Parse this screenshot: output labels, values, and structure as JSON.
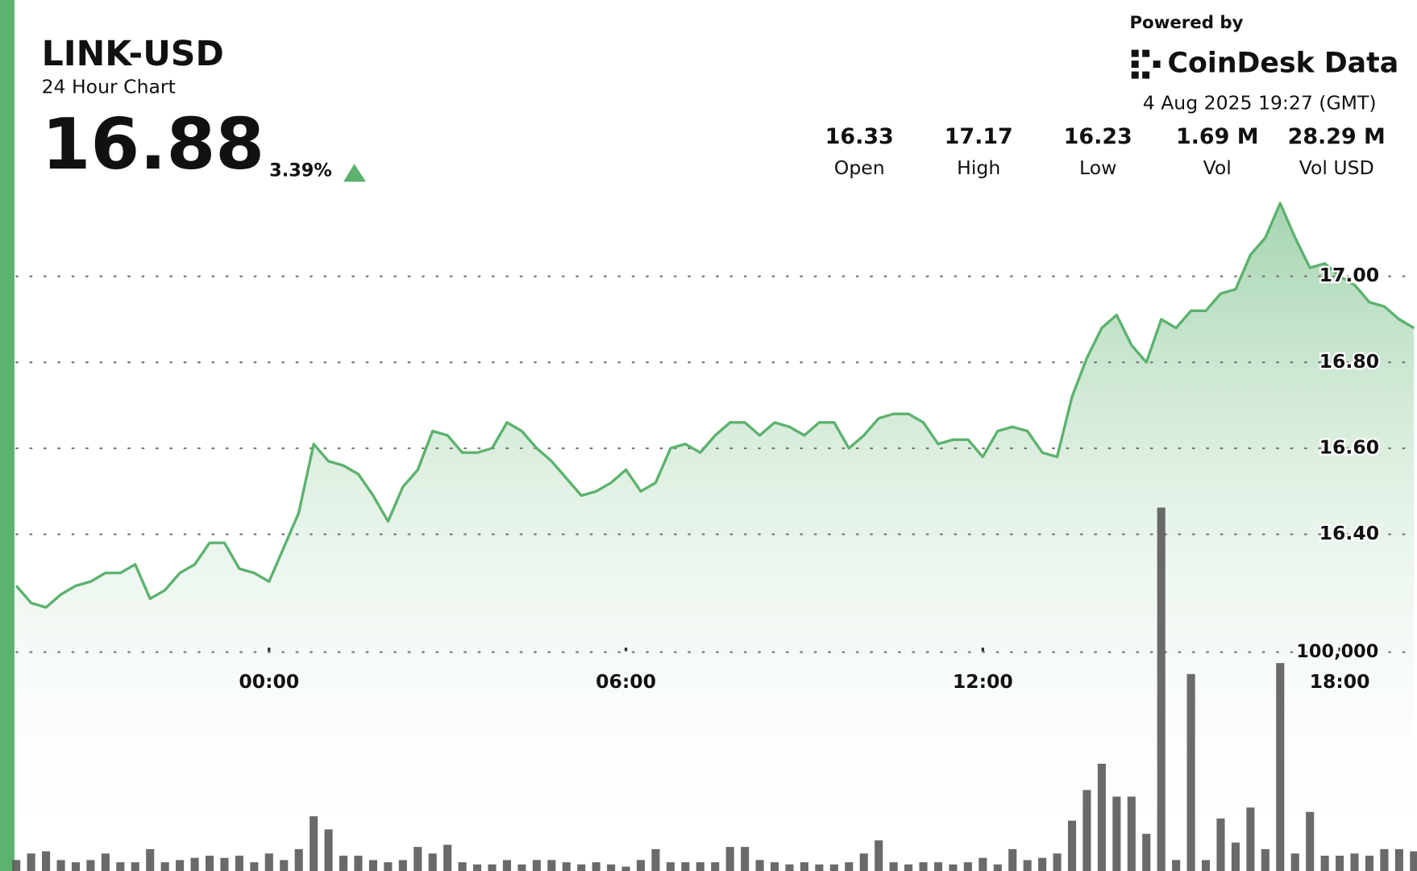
{
  "header": {
    "price": "16.88",
    "change": "3.39%",
    "powered_by": "Powered by",
    "brand": "CoinDesk Data",
    "timestamp": "4 Aug 2025 19:27 (GMT)",
    "stats": [
      {
        "value": "16.33",
        "label": "Open"
      },
      {
        "value": "17.17",
        "label": "High"
      },
      {
        "value": "16.23",
        "label": "Low"
      },
      {
        "value": "1.69 M",
        "label": "Vol"
      },
      {
        "value": "28.29 M",
        "label": "Vol USD"
      }
    ]
  },
  "chart_data": {
    "type": "line",
    "title": "LINK-USD",
    "subtitle": "24 Hour Chart",
    "x": [
      -4.25,
      -4,
      -3.75,
      -3.5,
      -3.25,
      -3,
      -2.75,
      -2.5,
      -2.25,
      -2,
      -1.75,
      -1.5,
      -1.25,
      -1,
      -0.75,
      -0.5,
      -0.25,
      0,
      0.25,
      0.5,
      0.75,
      1,
      1.25,
      1.5,
      1.75,
      2,
      2.25,
      2.5,
      2.75,
      3,
      3.25,
      3.5,
      3.75,
      4,
      4.25,
      4.5,
      4.75,
      5,
      5.25,
      5.5,
      5.75,
      6,
      6.25,
      6.5,
      6.75,
      7,
      7.25,
      7.5,
      7.75,
      8,
      8.25,
      8.5,
      8.75,
      9,
      9.25,
      9.5,
      9.75,
      10,
      10.25,
      10.5,
      10.75,
      11,
      11.25,
      11.5,
      11.75,
      12,
      12.25,
      12.5,
      12.75,
      13,
      13.25,
      13.5,
      13.75,
      14,
      14.25,
      14.5,
      14.75,
      15,
      15.25,
      15.5,
      15.75,
      16,
      16.25,
      16.5,
      16.75,
      17,
      17.25,
      17.5,
      17.75,
      18,
      18.25,
      18.5,
      18.75,
      19,
      19.25
    ],
    "series": [
      {
        "color": "#5cb26e",
        "values": [
          16.28,
          16.24,
          16.23,
          16.26,
          16.28,
          16.29,
          16.31,
          16.31,
          16.33,
          16.25,
          16.27,
          16.31,
          16.33,
          16.38,
          16.38,
          16.32,
          16.31,
          16.29,
          16.37,
          16.45,
          16.61,
          16.57,
          16.56,
          16.54,
          16.49,
          16.43,
          16.51,
          16.55,
          16.64,
          16.63,
          16.59,
          16.59,
          16.6,
          16.66,
          16.64,
          16.6,
          16.57,
          16.53,
          16.49,
          16.5,
          16.52,
          16.55,
          16.5,
          16.52,
          16.6,
          16.61,
          16.59,
          16.63,
          16.66,
          16.66,
          16.63,
          16.66,
          16.65,
          16.63,
          16.66,
          16.66,
          16.6,
          16.63,
          16.67,
          16.68,
          16.68,
          16.66,
          16.61,
          16.62,
          16.62,
          16.58,
          16.64,
          16.65,
          16.64,
          16.59,
          16.58,
          16.72,
          16.81,
          16.88,
          16.91,
          16.84,
          16.8,
          16.9,
          16.88,
          16.92,
          16.92,
          16.96,
          16.97,
          17.05,
          17.09,
          17.17,
          17.09,
          17.02,
          17.03,
          17.0,
          16.98,
          16.94,
          16.93,
          16.9,
          16.88
        ]
      },
      {
        "type": "bar",
        "axis": "y2",
        "color": "#5a5a5a",
        "values": [
          5000,
          8000,
          9000,
          5000,
          4000,
          5000,
          8000,
          4000,
          4000,
          10000,
          4000,
          5000,
          6000,
          7000,
          6000,
          7000,
          4000,
          8000,
          5000,
          10000,
          25000,
          19000,
          7000,
          7000,
          5000,
          4000,
          5000,
          11000,
          8000,
          12000,
          4000,
          3000,
          3000,
          5000,
          3000,
          5000,
          5000,
          4000,
          3000,
          4000,
          3000,
          2000,
          5000,
          10000,
          4000,
          4000,
          4000,
          4000,
          11000,
          11000,
          5000,
          4000,
          3000,
          4000,
          3000,
          3000,
          4000,
          8000,
          14000,
          4000,
          3000,
          4000,
          4000,
          3000,
          4000,
          6000,
          3000,
          10000,
          5000,
          6000,
          8000,
          23000,
          37000,
          49000,
          34000,
          34000,
          17000,
          166000,
          5000,
          90000,
          5000,
          24000,
          13000,
          29000,
          10000,
          95000,
          8000,
          27000,
          7000,
          7000,
          8000,
          7000,
          10000,
          10000,
          9000
        ]
      }
    ],
    "xlim": [
      -4.25,
      19.3
    ],
    "xticks": [
      {
        "value": 0,
        "label": "00:00"
      },
      {
        "value": 6,
        "label": "06:00"
      },
      {
        "value": 12,
        "label": "12:00"
      },
      {
        "value": 18,
        "label": "18:00"
      }
    ],
    "ylim": [
      16.17,
      17.18
    ],
    "yticks": [
      {
        "value": 16.4,
        "label": "16.40"
      },
      {
        "value": 16.6,
        "label": "16.60"
      },
      {
        "value": 16.8,
        "label": "16.80"
      },
      {
        "value": 17,
        "label": "17.00"
      }
    ],
    "y2lim": [
      0,
      400000
    ],
    "y2ticks": [
      {
        "value": 100000,
        "label": "100,000"
      }
    ],
    "grid": true
  }
}
